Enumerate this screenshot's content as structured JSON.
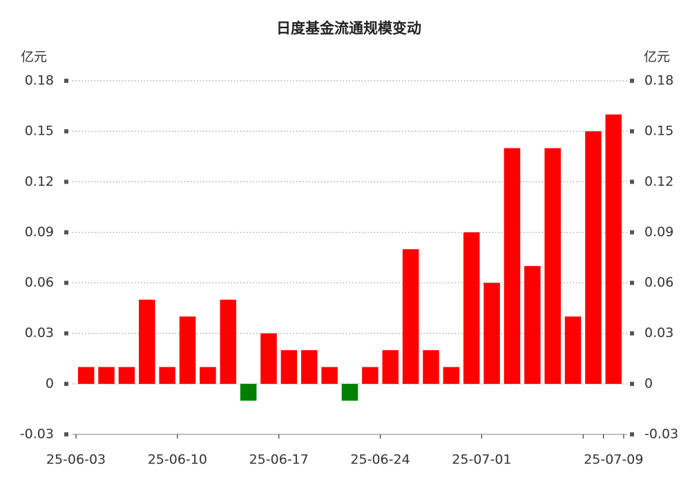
{
  "chart_data": {
    "type": "bar",
    "title": "日度基金流通规模变动",
    "y_unit": "亿元",
    "categories": [
      "25-06-03",
      null,
      null,
      null,
      null,
      "25-06-10",
      null,
      null,
      null,
      null,
      "25-06-17",
      null,
      null,
      null,
      null,
      "25-06-24",
      null,
      null,
      null,
      null,
      "25-07-01",
      null,
      null,
      null,
      null,
      null,
      "25-07-09"
    ],
    "values": [
      0.01,
      0.01,
      0.01,
      0.05,
      0.01,
      0.04,
      0.01,
      0.05,
      -0.01,
      0.03,
      0.02,
      0.02,
      0.01,
      -0.01,
      0.01,
      0.02,
      0.08,
      0.02,
      0.01,
      0.09,
      0.06,
      0.14,
      0.07,
      0.14,
      0.04,
      0.15,
      0.16
    ],
    "positive_color": "#ff0000",
    "negative_color": "#008000",
    "ylim": [
      -0.03,
      0.18
    ],
    "yticks": [
      -0.03,
      0,
      0.03,
      0.06,
      0.09,
      0.12,
      0.15,
      0.18
    ],
    "grid": true
  }
}
